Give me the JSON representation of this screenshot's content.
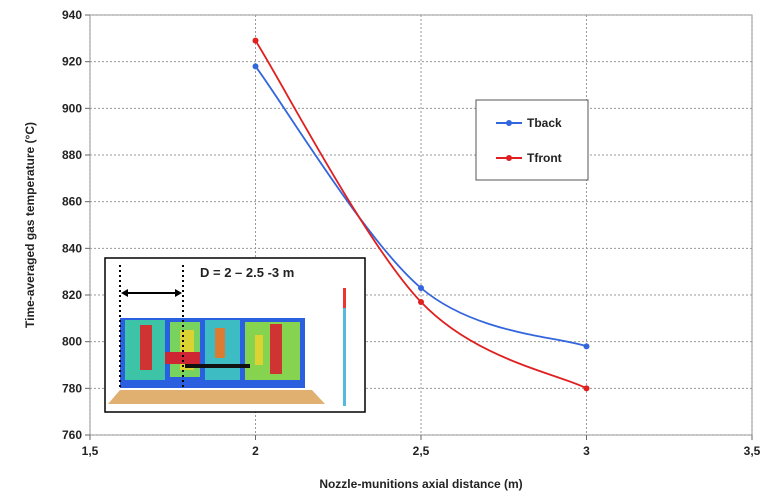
{
  "chart_data": {
    "type": "line",
    "xlabel": "Nozzle-munitions axial distance (m)",
    "ylabel": "Time-averaged gas temperature (°C)",
    "annotation": "D = 2 – 2.5 -3 m",
    "x": [
      2,
      2.5,
      3
    ],
    "series": [
      {
        "name": "Tback",
        "color": "#3366dd",
        "values": [
          918,
          823,
          798
        ]
      },
      {
        "name": "Tfront",
        "color": "#e02020",
        "values": [
          929,
          817,
          780
        ]
      }
    ],
    "xlim": [
      1.5,
      3.5
    ],
    "xticks": [
      {
        "value": 1.5,
        "label": "1,5"
      },
      2,
      {
        "value": 2.5,
        "label": "2,5"
      },
      3,
      {
        "value": 3.5,
        "label": "3,5"
      }
    ],
    "ylim": [
      760,
      940
    ],
    "yticks": [
      760,
      780,
      800,
      820,
      840,
      860,
      880,
      900,
      920,
      940
    ],
    "grid": true
  }
}
